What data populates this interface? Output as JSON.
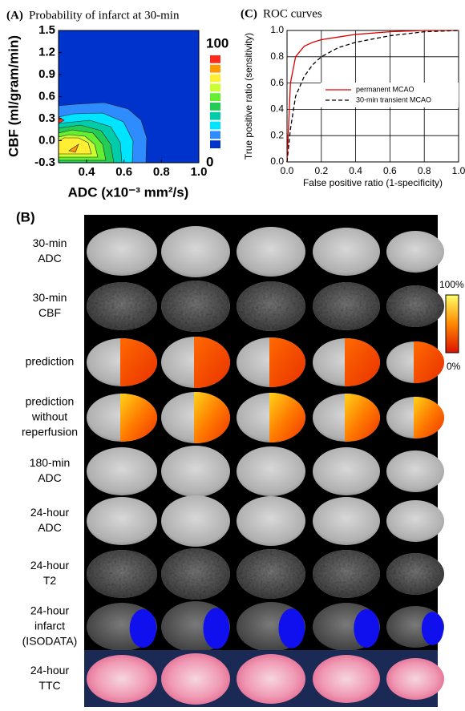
{
  "chart_data": [
    {
      "type": "contour",
      "panel": "(A)",
      "title": "Probability of infarct at 30-min",
      "x_label": "ADC (x10⁻³ mm²/s)",
      "y_label": "CBF (ml/gram/min)",
      "xlim": [
        0.25,
        1.0
      ],
      "xticks": [
        0.4,
        0.6,
        0.8,
        {
          "value": 1,
          "label": "1.0"
        }
      ],
      "ylim": [
        -0.3,
        1.5
      ],
      "yticks": [
        -0.3,
        {
          "value": 0,
          "label": "0.0"
        },
        0.3,
        0.6,
        0.9,
        1.2,
        1.5
      ],
      "colorbar_ticks": [
        100,
        0
      ],
      "colors": [
        "#ff2a1a",
        "#ff9900",
        "#ffee33",
        "#ccff33",
        "#66ee33",
        "#22cc55",
        "#00ccaa",
        "#00e5ff",
        "#2f8cff",
        "#0033cc"
      ]
    },
    {
      "type": "line",
      "panel": "(C)",
      "title": "ROC curves",
      "x_label": "False positive ratio (1-specificity)",
      "y_label": "True positive ratio (sensitivity)",
      "xlim": [
        0,
        1
      ],
      "ylim": [
        0,
        1
      ],
      "grid": true,
      "xticks": [
        {
          "value": 0,
          "label": "0.0"
        },
        0.2,
        0.4,
        0.6,
        0.8,
        {
          "value": 1,
          "label": "1.0"
        }
      ],
      "yticks": [
        {
          "value": 0,
          "label": "0.0"
        },
        0.2,
        0.4,
        0.6,
        0.8,
        {
          "value": 1,
          "label": "1.0"
        }
      ],
      "x": [
        0,
        0.02,
        0.05,
        0.1,
        0.15,
        0.2,
        0.3,
        0.4,
        0.6,
        0.8,
        1.0
      ],
      "series": [
        {
          "name": "permanent MCAO",
          "color": "#e00000",
          "dash": false,
          "values": [
            0,
            0.6,
            0.8,
            0.88,
            0.91,
            0.93,
            0.95,
            0.97,
            0.99,
            1.0,
            1.0
          ]
        },
        {
          "name": "30-min transient MCAO",
          "color": "#000000",
          "dash": true,
          "values": [
            0,
            0.25,
            0.5,
            0.65,
            0.74,
            0.8,
            0.87,
            0.91,
            0.96,
            0.99,
            1.0
          ]
        }
      ]
    }
  ],
  "panel_b": {
    "label": "(B)",
    "rows": [
      [
        "30-min",
        "ADC"
      ],
      [
        "30-min",
        "CBF"
      ],
      [
        "prediction"
      ],
      [
        "prediction",
        "without",
        "reperfusion"
      ],
      [
        "180-min",
        "ADC"
      ],
      [
        "24-hour",
        "ADC"
      ],
      [
        "24-hour",
        "T2"
      ],
      [
        "24-hour",
        "infarct",
        "(ISODATA)"
      ],
      [
        "24-hour",
        "TTC"
      ]
    ],
    "colorbar_labels": [
      "100%",
      "0%"
    ]
  }
}
